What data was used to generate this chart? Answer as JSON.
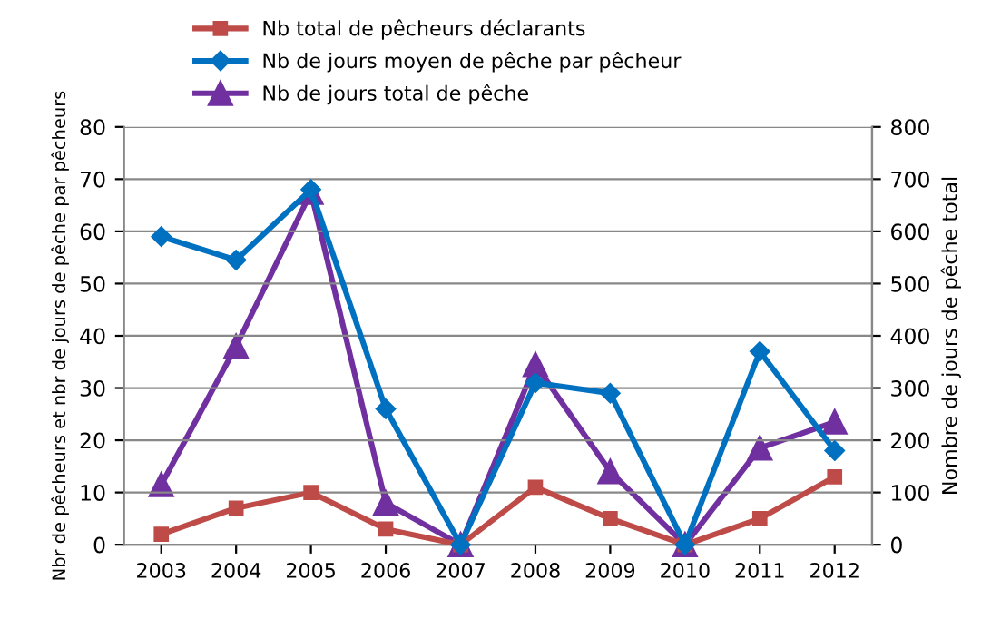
{
  "chart_data": {
    "type": "line",
    "categories": [
      "2003",
      "2004",
      "2005",
      "2006",
      "2007",
      "2008",
      "2009",
      "2010",
      "2011",
      "2012"
    ],
    "series": [
      {
        "name": "Nb total de pêcheurs déclarants",
        "color": "#be4b48",
        "marker": "square",
        "values": [
          2,
          7,
          10,
          3,
          0,
          11,
          5,
          0,
          5,
          13
        ]
      },
      {
        "name": "Nb de jours moyen de pêche par pêcheur",
        "color": "#0070c0",
        "marker": "diamond",
        "values": [
          59,
          54.5,
          68,
          26,
          0,
          31,
          29,
          0,
          37,
          18
        ]
      },
      {
        "name": "Nb de jours total de pêche",
        "color": "#7030a0",
        "marker": "triangle",
        "axis": "y2",
        "values": [
          115,
          380,
          675,
          80,
          0,
          345,
          140,
          0,
          185,
          235
        ]
      }
    ],
    "ylabel": "Nbr de pêcheurs et nbr de jours de pêche par pêcheurs",
    "y2label": "Nombre de jours de pêche total",
    "ylim": [
      0,
      80
    ],
    "yticks": [
      0,
      10,
      20,
      30,
      40,
      50,
      60,
      70,
      80
    ],
    "y2lim": [
      0,
      800
    ],
    "y2ticks": [
      0,
      100,
      200,
      300,
      400,
      500,
      600,
      700,
      800
    ],
    "grid": "y",
    "legend": "top"
  }
}
